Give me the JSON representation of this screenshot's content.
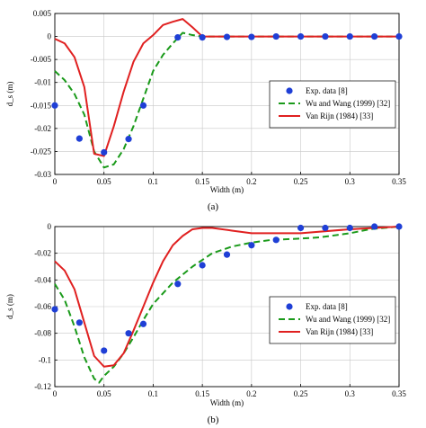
{
  "chart_data": [
    {
      "type": "line",
      "panel_label": "(a)",
      "xlabel": "Width (m)",
      "ylabel": "d_s (m)",
      "xlim": [
        0,
        0.35
      ],
      "ylim": [
        -0.03,
        0.005
      ],
      "xticks": [
        0,
        0.05,
        0.1,
        0.15,
        0.2,
        0.25,
        0.3,
        0.35
      ],
      "xtick_labels": [
        "0",
        "0.05",
        "0.1",
        "0.15",
        "0.2",
        "0.25",
        "0.3",
        "0.35"
      ],
      "yticks": [
        0.005,
        0,
        -0.005,
        -0.01,
        -0.015,
        -0.02,
        -0.025,
        -0.03
      ],
      "ytick_labels": [
        "0.005",
        "0",
        "-0.005",
        "-0.01",
        "-0.015",
        "-0.02",
        "-0.025",
        "-0.03"
      ],
      "grid": true,
      "legend_position": "center-right",
      "series": [
        {
          "name": "Exp. data [8]",
          "style": "markers",
          "color": "#1f3fd6",
          "x": [
            0,
            0.025,
            0.05,
            0.075,
            0.09,
            0.125,
            0.15,
            0.175,
            0.2,
            0.225,
            0.25,
            0.275,
            0.3,
            0.325,
            0.35
          ],
          "y": [
            -0.015,
            -0.0222,
            -0.0252,
            -0.0223,
            -0.015,
            -0.0002,
            -0.0002,
            -0.0001,
            -0.0001,
            0,
            0,
            0,
            0,
            0,
            0
          ]
        },
        {
          "name": "Wu and Wang (1999) [32]",
          "style": "dashed",
          "color": "#1a9a1a",
          "x": [
            0,
            0.01,
            0.02,
            0.03,
            0.04,
            0.05,
            0.06,
            0.07,
            0.08,
            0.09,
            0.1,
            0.11,
            0.12,
            0.13,
            0.14,
            0.15,
            0.2,
            0.25,
            0.3,
            0.35
          ],
          "y": [
            -0.0075,
            -0.0095,
            -0.0125,
            -0.017,
            -0.025,
            -0.0285,
            -0.0278,
            -0.0245,
            -0.0195,
            -0.0135,
            -0.0075,
            -0.004,
            -0.0015,
            0.0008,
            0.0003,
            0,
            0,
            0,
            0,
            0
          ]
        },
        {
          "name": "Van Rijn (1984) [33]",
          "style": "solid",
          "color": "#e02020",
          "x": [
            0,
            0.01,
            0.02,
            0.03,
            0.04,
            0.05,
            0.06,
            0.07,
            0.08,
            0.09,
            0.1,
            0.11,
            0.12,
            0.13,
            0.14,
            0.15,
            0.2,
            0.25,
            0.3,
            0.35
          ],
          "y": [
            -0.0005,
            -0.0015,
            -0.0045,
            -0.011,
            -0.0255,
            -0.026,
            -0.0195,
            -0.012,
            -0.0055,
            -0.0015,
            0.0003,
            0.0025,
            0.0032,
            0.0038,
            0.002,
            0,
            0,
            0,
            0,
            0
          ]
        }
      ]
    },
    {
      "type": "line",
      "panel_label": "(b)",
      "xlabel": "Width (m)",
      "ylabel": "d_s (m)",
      "xlim": [
        0,
        0.35
      ],
      "ylim": [
        -0.12,
        0
      ],
      "xticks": [
        0,
        0.05,
        0.1,
        0.15,
        0.2,
        0.25,
        0.3,
        0.35
      ],
      "xtick_labels": [
        "0",
        "0.05",
        "0.1",
        "0.15",
        "0.2",
        "0.25",
        "0.3",
        "0.35"
      ],
      "yticks": [
        0,
        -0.02,
        -0.04,
        -0.06,
        -0.08,
        -0.1,
        -0.12
      ],
      "ytick_labels": [
        "0",
        "-0.02",
        "-0.04",
        "-0.06",
        "-0.08",
        "-0.1",
        "-0.12"
      ],
      "grid": true,
      "legend_position": "center-right",
      "series": [
        {
          "name": "Exp. data [8]",
          "style": "markers",
          "color": "#1f3fd6",
          "x": [
            0,
            0.025,
            0.05,
            0.075,
            0.09,
            0.125,
            0.15,
            0.175,
            0.2,
            0.225,
            0.25,
            0.275,
            0.3,
            0.325,
            0.35
          ],
          "y": [
            -0.062,
            -0.072,
            -0.093,
            -0.08,
            -0.073,
            -0.043,
            -0.029,
            -0.021,
            -0.014,
            -0.01,
            -0.001,
            -0.001,
            -0.001,
            0,
            0
          ]
        },
        {
          "name": "Wu and Wang (1999) [32]",
          "style": "dashed",
          "color": "#1a9a1a",
          "x": [
            0,
            0.01,
            0.02,
            0.03,
            0.04,
            0.045,
            0.05,
            0.06,
            0.07,
            0.08,
            0.09,
            0.1,
            0.12,
            0.14,
            0.16,
            0.18,
            0.2,
            0.22,
            0.25,
            0.27,
            0.3,
            0.32,
            0.35
          ],
          "y": [
            -0.043,
            -0.055,
            -0.075,
            -0.098,
            -0.114,
            -0.117,
            -0.112,
            -0.105,
            -0.095,
            -0.083,
            -0.07,
            -0.058,
            -0.042,
            -0.03,
            -0.02,
            -0.015,
            -0.012,
            -0.01,
            -0.009,
            -0.008,
            -0.005,
            -0.002,
            0
          ]
        },
        {
          "name": "Van Rijn (1984) [33]",
          "style": "solid",
          "color": "#e02020",
          "x": [
            0,
            0.01,
            0.02,
            0.03,
            0.04,
            0.05,
            0.06,
            0.07,
            0.08,
            0.09,
            0.1,
            0.11,
            0.12,
            0.13,
            0.14,
            0.15,
            0.16,
            0.18,
            0.2,
            0.25,
            0.3,
            0.35
          ],
          "y": [
            -0.026,
            -0.033,
            -0.047,
            -0.072,
            -0.097,
            -0.105,
            -0.104,
            -0.095,
            -0.078,
            -0.06,
            -0.042,
            -0.026,
            -0.014,
            -0.007,
            -0.002,
            -0.001,
            -0.001,
            -0.003,
            -0.005,
            -0.005,
            -0.002,
            0
          ]
        }
      ]
    }
  ]
}
